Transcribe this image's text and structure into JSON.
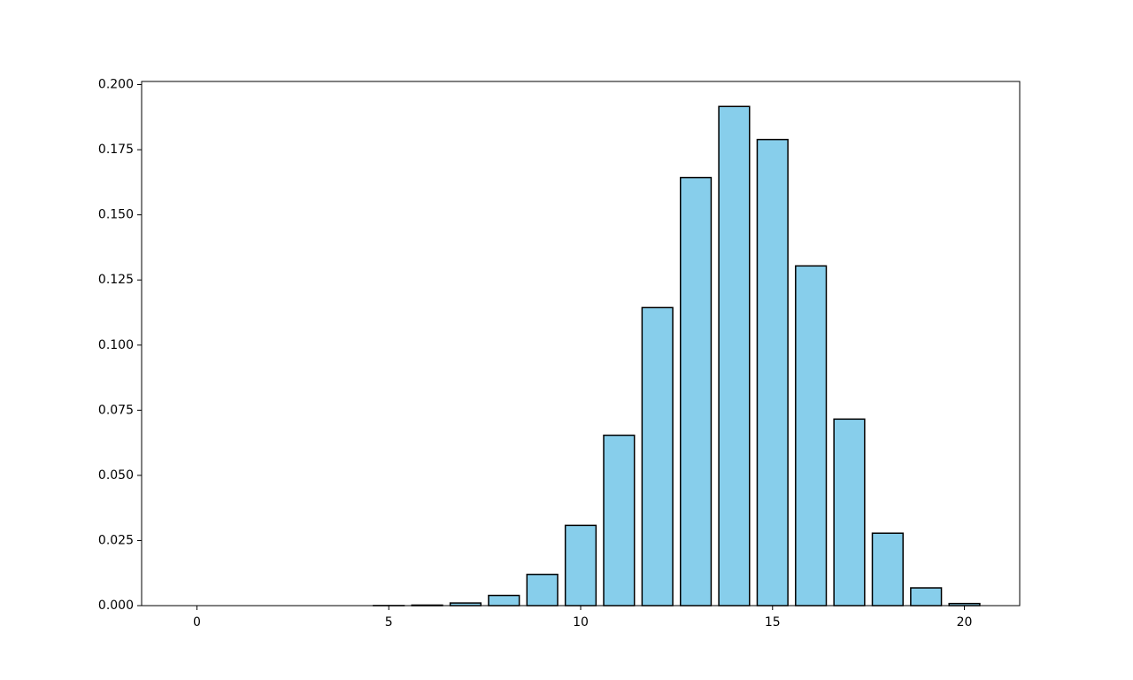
{
  "chart_data": {
    "type": "bar",
    "x": [
      0,
      1,
      2,
      3,
      4,
      5,
      6,
      7,
      8,
      9,
      10,
      11,
      12,
      13,
      14,
      15,
      16,
      17,
      18,
      19,
      20
    ],
    "values": [
      0,
      0,
      0,
      0,
      0,
      4e-05,
      0.0002,
      0.001,
      0.0039,
      0.012,
      0.0308,
      0.0654,
      0.1144,
      0.1643,
      0.1916,
      0.1789,
      0.1304,
      0.0716,
      0.0278,
      0.0068,
      0.0008
    ],
    "color": "#87ceeb",
    "edgecolor": "#000000",
    "xlim": [
      -1.44,
      21.44
    ],
    "xticks": [
      0,
      5,
      10,
      15,
      20
    ],
    "ylim": [
      0,
      0.2012
    ],
    "yticks": [
      {
        "value": 0,
        "label": "0.000"
      },
      {
        "value": 0.025,
        "label": "0.025"
      },
      {
        "value": 0.05,
        "label": "0.050"
      },
      {
        "value": 0.075,
        "label": "0.075"
      },
      {
        "value": 0.1,
        "label": "0.100"
      },
      {
        "value": 0.125,
        "label": "0.125"
      },
      {
        "value": 0.15,
        "label": "0.150"
      },
      {
        "value": 0.175,
        "label": "0.175"
      },
      {
        "value": 0.2,
        "label": "0.200"
      }
    ],
    "grid": false
  }
}
